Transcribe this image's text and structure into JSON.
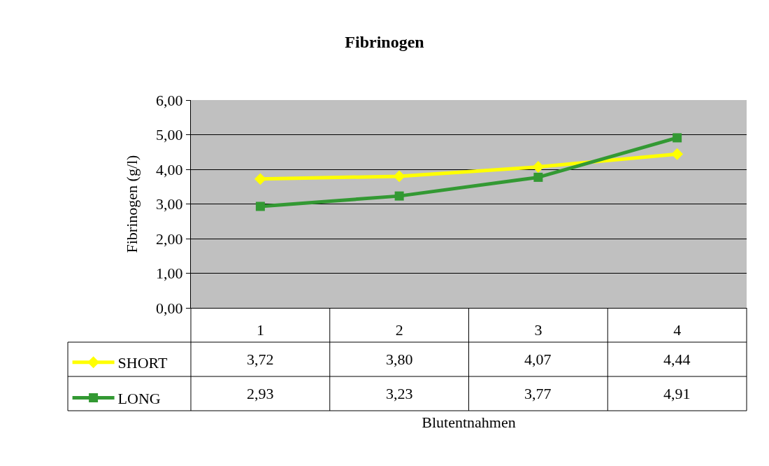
{
  "chart_data": {
    "type": "line",
    "title": "Fibrinogen",
    "xlabel": "Blutentnahmen",
    "ylabel": "Fibrinogen (g/l)",
    "categories": [
      "1",
      "2",
      "3",
      "4"
    ],
    "series": [
      {
        "name": "SHORT",
        "color": "#ffff00",
        "marker": "diamond",
        "values": [
          3.72,
          3.8,
          4.07,
          4.44
        ],
        "value_labels": [
          "3,72",
          "3,80",
          "4,07",
          "4,44"
        ]
      },
      {
        "name": "LONG",
        "color": "#339933",
        "marker": "square",
        "values": [
          2.93,
          3.23,
          3.77,
          4.91
        ],
        "value_labels": [
          "2,93",
          "3,23",
          "3,77",
          "4,91"
        ]
      }
    ],
    "ylim": [
      0,
      6
    ],
    "yticks": [
      {
        "value": 0,
        "label": "0,00"
      },
      {
        "value": 1,
        "label": "1,00"
      },
      {
        "value": 2,
        "label": "2,00"
      },
      {
        "value": 3,
        "label": "3,00"
      },
      {
        "value": 4,
        "label": "4,00"
      },
      {
        "value": 5,
        "label": "5,00"
      },
      {
        "value": 6,
        "label": "6,00"
      }
    ],
    "grid": "y",
    "legend": "bottom left"
  }
}
